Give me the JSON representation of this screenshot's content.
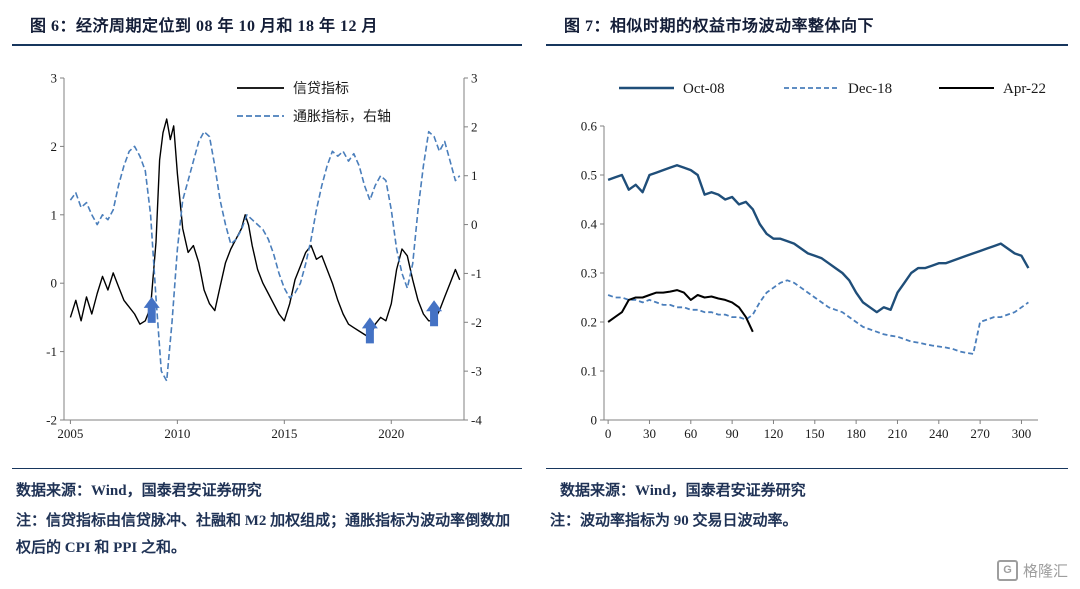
{
  "figure6": {
    "source": "数据来源：Wind，国泰君安证券研究",
    "note": "注：信贷指标由信贷脉冲、社融和 M2 加权组成；通胀指标为波动率倒数加权后的 CPI 和 PPI 之和。"
  },
  "figure7": {
    "source": "数据来源：Wind，国泰君安证券研究",
    "note": "注：波动率指标为 90 交易日波动率。"
  },
  "watermark": {
    "text": "格隆汇",
    "logo": "G"
  },
  "colors": {
    "navy_rule": "#17365d",
    "blue_dashed": "#4a7ebb",
    "dark_blue": "#1f4e79",
    "black_line": "#000000",
    "arrow_blue": "#4472c4"
  },
  "chart_data": [
    {
      "id": "chart6",
      "type": "line",
      "title": "图 6：经济周期定位到 08 年 10 月和 18 年 12 月",
      "x_range": [
        2004.7,
        2023.4
      ],
      "x_ticks": [
        2005,
        2010,
        2015,
        2020
      ],
      "y_left": {
        "range": [
          -2,
          3
        ],
        "ticks": [
          3,
          2,
          1,
          0,
          -1,
          -2
        ]
      },
      "y_right": {
        "range": [
          -4,
          3
        ],
        "ticks": [
          3,
          2,
          1,
          0,
          -1,
          -2,
          -3,
          -4
        ]
      },
      "grid": false,
      "legend_position": "top-center-stacked",
      "series": [
        {
          "name": "信贷指标",
          "axis": "left",
          "color": "#000000",
          "dash": null,
          "width": 1.4,
          "x": [
            2005,
            2005.25,
            2005.5,
            2005.75,
            2006,
            2006.25,
            2006.5,
            2006.75,
            2007,
            2007.25,
            2007.5,
            2007.75,
            2008,
            2008.25,
            2008.5,
            2008.75,
            2009,
            2009.17,
            2009.33,
            2009.5,
            2009.67,
            2009.83,
            2010,
            2010.25,
            2010.5,
            2010.75,
            2011,
            2011.25,
            2011.5,
            2011.75,
            2012,
            2012.25,
            2012.5,
            2012.75,
            2013,
            2013.17,
            2013.33,
            2013.5,
            2013.75,
            2014,
            2014.25,
            2014.5,
            2014.75,
            2015,
            2015.25,
            2015.5,
            2015.75,
            2016,
            2016.25,
            2016.5,
            2016.75,
            2017,
            2017.25,
            2017.5,
            2017.75,
            2018,
            2018.25,
            2018.5,
            2018.75,
            2019,
            2019.25,
            2019.5,
            2019.75,
            2020,
            2020.25,
            2020.5,
            2020.75,
            2021,
            2021.25,
            2021.5,
            2021.75,
            2022,
            2022.25,
            2022.5,
            2022.75,
            2023,
            2023.2
          ],
          "y": [
            -0.5,
            -0.25,
            -0.55,
            -0.2,
            -0.45,
            -0.15,
            0.1,
            -0.1,
            0.15,
            -0.05,
            -0.25,
            -0.35,
            -0.45,
            -0.6,
            -0.55,
            -0.35,
            0.6,
            1.8,
            2.2,
            2.4,
            2.1,
            2.3,
            1.6,
            0.8,
            0.45,
            0.55,
            0.3,
            -0.1,
            -0.3,
            -0.4,
            -0.05,
            0.3,
            0.5,
            0.65,
            0.8,
            1.0,
            0.85,
            0.55,
            0.2,
            0.0,
            -0.15,
            -0.3,
            -0.45,
            -0.55,
            -0.3,
            0.05,
            0.25,
            0.45,
            0.55,
            0.35,
            0.4,
            0.2,
            0.0,
            -0.25,
            -0.45,
            -0.6,
            -0.65,
            -0.7,
            -0.75,
            -0.8,
            -0.6,
            -0.5,
            -0.55,
            -0.3,
            0.2,
            0.5,
            0.4,
            0.05,
            -0.25,
            -0.45,
            -0.55,
            -0.55,
            -0.4,
            -0.2,
            0.0,
            0.2,
            0.05
          ]
        },
        {
          "name": "通胀指标，右轴",
          "axis": "right",
          "color": "#4a7ebb",
          "dash": "6,3",
          "width": 1.6,
          "x": [
            2005,
            2005.25,
            2005.5,
            2005.75,
            2006,
            2006.25,
            2006.5,
            2006.75,
            2007,
            2007.25,
            2007.5,
            2007.75,
            2008,
            2008.25,
            2008.5,
            2008.75,
            2009,
            2009.25,
            2009.5,
            2009.75,
            2010,
            2010.25,
            2010.5,
            2010.75,
            2011,
            2011.25,
            2011.5,
            2011.75,
            2012,
            2012.25,
            2012.5,
            2012.75,
            2013,
            2013.25,
            2013.5,
            2013.75,
            2014,
            2014.25,
            2014.5,
            2014.75,
            2015,
            2015.25,
            2015.5,
            2015.75,
            2016,
            2016.25,
            2016.5,
            2016.75,
            2017,
            2017.25,
            2017.5,
            2017.75,
            2018,
            2018.25,
            2018.5,
            2018.75,
            2019,
            2019.25,
            2019.5,
            2019.75,
            2020,
            2020.25,
            2020.5,
            2020.75,
            2021,
            2021.25,
            2021.5,
            2021.75,
            2022,
            2022.25,
            2022.5,
            2022.75,
            2023,
            2023.2
          ],
          "y": [
            0.5,
            0.65,
            0.35,
            0.45,
            0.2,
            0.0,
            0.2,
            0.1,
            0.3,
            0.8,
            1.2,
            1.5,
            1.6,
            1.4,
            1.1,
            0.2,
            -1.5,
            -3.0,
            -3.2,
            -2.0,
            -0.5,
            0.5,
            0.9,
            1.3,
            1.7,
            1.9,
            1.8,
            1.2,
            0.5,
            0.0,
            -0.4,
            -0.3,
            -0.1,
            0.2,
            0.1,
            0.0,
            -0.1,
            -0.3,
            -0.6,
            -1.0,
            -1.3,
            -1.5,
            -1.4,
            -1.2,
            -0.8,
            -0.3,
            0.3,
            0.8,
            1.2,
            1.5,
            1.4,
            1.5,
            1.3,
            1.45,
            1.2,
            0.8,
            0.5,
            0.8,
            1.0,
            0.9,
            0.3,
            -0.5,
            -1.0,
            -1.3,
            -0.8,
            0.3,
            1.2,
            1.9,
            1.8,
            1.5,
            1.7,
            1.3,
            0.9,
            1.0
          ]
        }
      ],
      "annotations": [
        {
          "type": "up-arrow",
          "x": 2008.8,
          "y": -0.2,
          "color": "#4472c4"
        },
        {
          "type": "up-arrow",
          "x": 2019.0,
          "y": -0.5,
          "color": "#4472c4"
        },
        {
          "type": "up-arrow",
          "x": 2022.0,
          "y": -0.25,
          "color": "#4472c4"
        }
      ]
    },
    {
      "id": "chart7",
      "type": "line",
      "title": "图 7：相似时期的权益市场波动率整体向下",
      "x_range": [
        -3,
        312
      ],
      "x_ticks": [
        0,
        30,
        60,
        90,
        120,
        150,
        180,
        210,
        240,
        270,
        300
      ],
      "y_left": {
        "range": [
          0,
          0.6
        ],
        "ticks": [
          0.6,
          0.5,
          0.4,
          0.3,
          0.2,
          0.1,
          0
        ]
      },
      "grid": false,
      "legend_position": "top-row",
      "series": [
        {
          "name": "Oct-08",
          "axis": "left",
          "color": "#1f4e79",
          "dash": null,
          "width": 2.4,
          "x": [
            0,
            5,
            10,
            15,
            20,
            25,
            30,
            35,
            40,
            45,
            50,
            55,
            60,
            65,
            70,
            75,
            80,
            85,
            90,
            95,
            100,
            105,
            110,
            115,
            120,
            125,
            130,
            135,
            140,
            145,
            150,
            155,
            160,
            165,
            170,
            175,
            180,
            185,
            190,
            195,
            200,
            205,
            210,
            215,
            220,
            225,
            230,
            235,
            240,
            245,
            250,
            255,
            260,
            265,
            270,
            275,
            280,
            285,
            290,
            295,
            300,
            305
          ],
          "y": [
            0.49,
            0.495,
            0.5,
            0.47,
            0.48,
            0.465,
            0.5,
            0.505,
            0.51,
            0.515,
            0.52,
            0.515,
            0.51,
            0.5,
            0.46,
            0.465,
            0.46,
            0.45,
            0.455,
            0.44,
            0.445,
            0.43,
            0.4,
            0.38,
            0.37,
            0.37,
            0.365,
            0.36,
            0.35,
            0.34,
            0.335,
            0.33,
            0.32,
            0.31,
            0.3,
            0.285,
            0.26,
            0.24,
            0.23,
            0.22,
            0.23,
            0.225,
            0.26,
            0.28,
            0.3,
            0.31,
            0.31,
            0.315,
            0.32,
            0.32,
            0.325,
            0.33,
            0.335,
            0.34,
            0.345,
            0.35,
            0.355,
            0.36,
            0.35,
            0.34,
            0.335,
            0.31
          ]
        },
        {
          "name": "Dec-18",
          "axis": "left",
          "color": "#4a7ebb",
          "dash": "5,3",
          "width": 1.8,
          "x": [
            0,
            5,
            10,
            15,
            20,
            25,
            30,
            35,
            40,
            45,
            50,
            55,
            60,
            65,
            70,
            75,
            80,
            85,
            90,
            95,
            100,
            105,
            110,
            115,
            120,
            125,
            130,
            135,
            140,
            145,
            150,
            155,
            160,
            165,
            170,
            175,
            180,
            185,
            190,
            195,
            200,
            205,
            210,
            215,
            220,
            225,
            230,
            235,
            240,
            245,
            250,
            255,
            260,
            265,
            270,
            275,
            280,
            285,
            290,
            295,
            300,
            305
          ],
          "y": [
            0.255,
            0.25,
            0.25,
            0.245,
            0.245,
            0.24,
            0.245,
            0.24,
            0.235,
            0.235,
            0.23,
            0.23,
            0.225,
            0.225,
            0.22,
            0.22,
            0.215,
            0.215,
            0.21,
            0.21,
            0.205,
            0.215,
            0.24,
            0.26,
            0.27,
            0.28,
            0.285,
            0.28,
            0.27,
            0.26,
            0.25,
            0.24,
            0.23,
            0.225,
            0.22,
            0.21,
            0.2,
            0.19,
            0.185,
            0.18,
            0.175,
            0.172,
            0.17,
            0.165,
            0.16,
            0.158,
            0.155,
            0.152,
            0.15,
            0.148,
            0.145,
            0.14,
            0.137,
            0.135,
            0.2,
            0.205,
            0.21,
            0.21,
            0.215,
            0.22,
            0.23,
            0.24
          ]
        },
        {
          "name": "Apr-22",
          "axis": "left",
          "color": "#000000",
          "dash": null,
          "width": 2.0,
          "x": [
            0,
            5,
            10,
            15,
            20,
            25,
            30,
            35,
            40,
            45,
            50,
            55,
            60,
            65,
            70,
            75,
            80,
            85,
            90,
            95,
            100,
            105
          ],
          "y": [
            0.2,
            0.21,
            0.22,
            0.245,
            0.25,
            0.25,
            0.255,
            0.26,
            0.26,
            0.262,
            0.265,
            0.26,
            0.245,
            0.255,
            0.25,
            0.252,
            0.248,
            0.245,
            0.24,
            0.23,
            0.21,
            0.18
          ]
        }
      ]
    }
  ]
}
